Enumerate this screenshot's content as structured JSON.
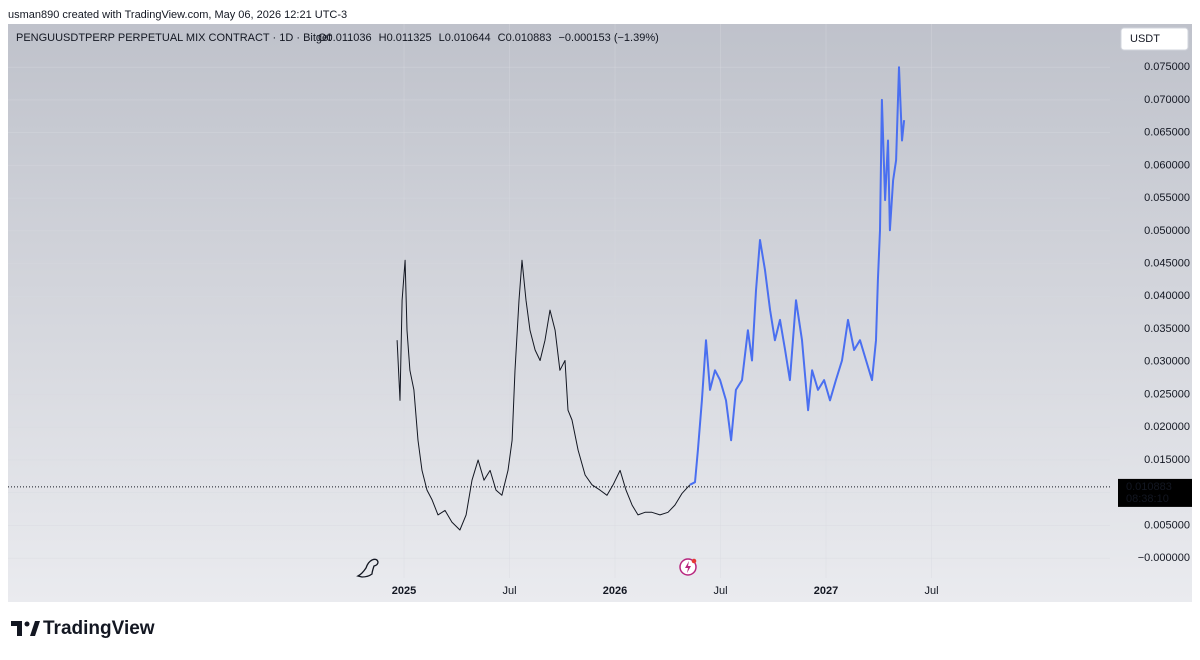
{
  "header": {
    "credit": "usman890 created with TradingView.com, May 06, 2026 12:21 UTC-3"
  },
  "chart_data": {
    "type": "line",
    "symbol": "PENGUUSDTPERP PERPETUAL MIX CONTRACT · 1D · Bitget",
    "ohlc": [
      "O0.011036",
      "H0.011325",
      "L0.010644",
      "C0.010883",
      "−0.000153 (−1.39%)"
    ],
    "currency": "USDT",
    "last_price": 0.010883,
    "countdown": "08:38:10",
    "xlim": [
      2023.123,
      2028.346
    ],
    "xticks": [
      2025,
      {
        "value": 2025.5,
        "label": "Jul"
      },
      2026,
      {
        "value": 2026.5,
        "label": "Jul"
      },
      2027,
      {
        "value": 2027.5,
        "label": "Jul"
      }
    ],
    "ylim": [
      -0.0067,
      0.0816
    ],
    "yticks": [
      {
        "value": 0.075,
        "label": "0.075000"
      },
      {
        "value": 0.07,
        "label": "0.070000"
      },
      {
        "value": 0.065,
        "label": "0.065000"
      },
      {
        "value": 0.06,
        "label": "0.060000"
      },
      {
        "value": 0.055,
        "label": "0.055000"
      },
      {
        "value": 0.05,
        "label": "0.050000"
      },
      {
        "value": 0.045,
        "label": "0.045000"
      },
      {
        "value": 0.04,
        "label": "0.040000"
      },
      {
        "value": 0.035,
        "label": "0.035000"
      },
      {
        "value": 0.03,
        "label": "0.030000"
      },
      {
        "value": 0.025,
        "label": "0.025000"
      },
      {
        "value": 0.02,
        "label": "0.020000"
      },
      {
        "value": 0.015,
        "label": "0.015000"
      },
      {
        "value": 0.01,
        "label": "0.010000"
      },
      {
        "value": 0.005,
        "label": "0.005000"
      },
      {
        "value": 0,
        "label": "−0.000000"
      }
    ],
    "grid": true,
    "series": [
      {
        "color": "#131722",
        "width": 1,
        "x": [
          2024.967,
          2024.981,
          2024.991,
          2025.005,
          2025.014,
          2025.028,
          2025.047,
          2025.066,
          2025.085,
          2025.109,
          2025.133,
          2025.161,
          2025.194,
          2025.227,
          2025.265,
          2025.294,
          2025.322,
          2025.351,
          2025.379,
          2025.408,
          2025.436,
          2025.464,
          2025.493,
          2025.512,
          2025.526,
          2025.545,
          2025.559,
          2025.578,
          2025.597,
          2025.621,
          2025.645,
          2025.668,
          2025.692,
          2025.716,
          2025.739,
          2025.763,
          2025.777,
          2025.796,
          2025.825,
          2025.858,
          2025.891,
          2025.929,
          2025.962,
          2025.991,
          2026.024,
          2026.052,
          2026.081,
          2026.109,
          2026.142,
          2026.175,
          2026.213,
          2026.251,
          2026.284,
          2026.318,
          2026.355
        ],
        "values": [
          0.0333,
          0.0241,
          0.0394,
          0.0455,
          0.0348,
          0.0287,
          0.0257,
          0.018,
          0.0134,
          0.0104,
          0.0089,
          0.0066,
          0.0073,
          0.0055,
          0.0043,
          0.0066,
          0.0119,
          0.015,
          0.0119,
          0.0134,
          0.0104,
          0.0096,
          0.0134,
          0.018,
          0.0287,
          0.0394,
          0.0455,
          0.0394,
          0.0348,
          0.0318,
          0.0302,
          0.0333,
          0.0379,
          0.0348,
          0.0287,
          0.0302,
          0.0226,
          0.0211,
          0.0165,
          0.0127,
          0.0112,
          0.0104,
          0.0096,
          0.0112,
          0.0134,
          0.0104,
          0.0081,
          0.0066,
          0.007,
          0.007,
          0.0066,
          0.007,
          0.0081,
          0.0099,
          0.0112
        ]
      },
      {
        "color": "#4a6ff0",
        "width": 2,
        "x": [
          2026.355,
          2026.379,
          2026.393,
          2026.412,
          2026.431,
          2026.45,
          2026.474,
          2026.498,
          2026.526,
          2026.55,
          2026.573,
          2026.602,
          2026.63,
          2026.649,
          2026.668,
          2026.687,
          2026.711,
          2026.735,
          2026.758,
          2026.782,
          2026.806,
          2026.829,
          2026.858,
          2026.886,
          2026.915,
          2026.934,
          2026.962,
          2026.991,
          2027.019,
          2027.047,
          2027.076,
          2027.104,
          2027.133,
          2027.161,
          2027.19,
          2027.218,
          2027.237,
          2027.246,
          2027.256,
          2027.265,
          2027.28,
          2027.294,
          2027.303,
          2027.318,
          2027.332,
          2027.346,
          2027.36,
          2027.37
        ],
        "values": [
          0.0112,
          0.0116,
          0.0165,
          0.0241,
          0.0333,
          0.0257,
          0.0287,
          0.0272,
          0.0241,
          0.018,
          0.0257,
          0.0272,
          0.0348,
          0.0302,
          0.0409,
          0.0486,
          0.044,
          0.0379,
          0.0333,
          0.0364,
          0.0318,
          0.0272,
          0.0394,
          0.0333,
          0.0226,
          0.0287,
          0.0257,
          0.0272,
          0.0241,
          0.0272,
          0.0302,
          0.0364,
          0.0318,
          0.0333,
          0.0302,
          0.0272,
          0.0333,
          0.0425,
          0.0501,
          0.07,
          0.0547,
          0.0638,
          0.0501,
          0.0577,
          0.0608,
          0.075,
          0.0638,
          0.0669
        ]
      }
    ]
  },
  "footer": {
    "brand": "TradingView"
  }
}
